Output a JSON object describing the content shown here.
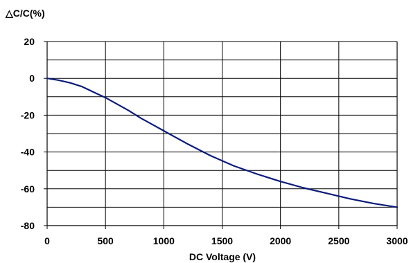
{
  "chart_data": {
    "type": "line",
    "ylabel": "△C/C(%)",
    "xlabel": "DC Voltage (V)",
    "xlim": [
      0,
      3000
    ],
    "ylim": [
      -80,
      20
    ],
    "x_ticks": [
      0,
      500,
      1000,
      1500,
      2000,
      2500,
      3000
    ],
    "y_ticks": [
      20,
      0,
      -20,
      -40,
      -60,
      -80
    ],
    "x_tick_labels": [
      "0",
      "500",
      "1000",
      "1500",
      "2000",
      "2500",
      "3000"
    ],
    "y_tick_labels": [
      "20",
      "0",
      "-20",
      "-40",
      "-60",
      "-80"
    ],
    "x_grid_lines": [
      500,
      1000,
      1500,
      2000,
      2500
    ],
    "y_grid_lines": [
      20,
      10,
      0,
      -10,
      -20,
      -30,
      -40,
      -50,
      -60,
      -70
    ],
    "grid": true,
    "legend": "none",
    "series": [
      {
        "color": "#0a1a7a",
        "x": [
          0,
          100,
          200,
          300,
          400,
          500,
          600,
          700,
          800,
          900,
          1000,
          1200,
          1400,
          1600,
          1800,
          2000,
          2200,
          2400,
          2600,
          2800,
          3000
        ],
        "y": [
          0,
          -1,
          -2.5,
          -4.5,
          -7.5,
          -10.5,
          -14,
          -17.5,
          -21.5,
          -25,
          -28.5,
          -35.5,
          -42,
          -47.5,
          -52,
          -56,
          -59.5,
          -62.5,
          -65.5,
          -68,
          -70
        ]
      }
    ]
  }
}
